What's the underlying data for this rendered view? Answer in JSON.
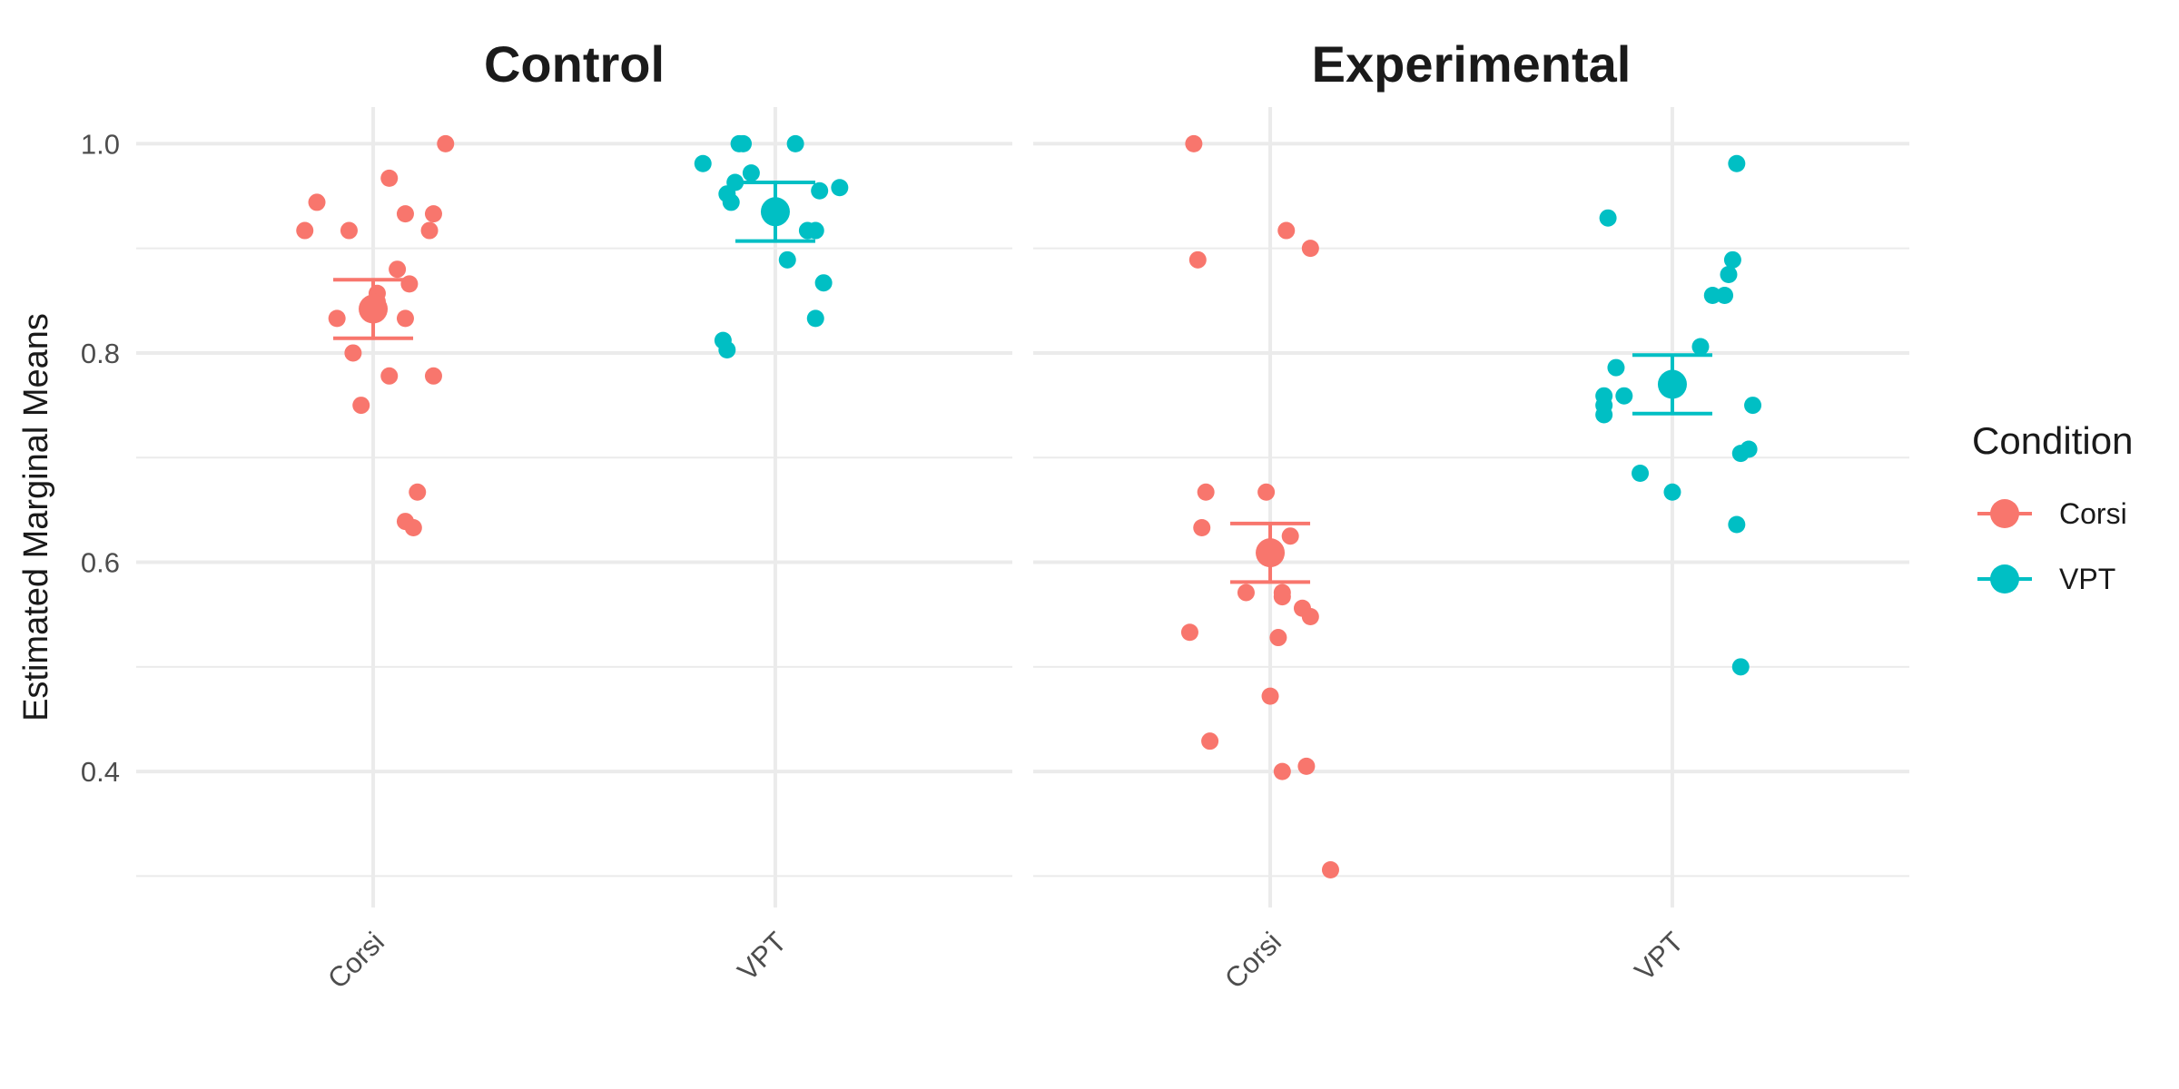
{
  "chart_data": {
    "type": "scatter",
    "ylabel": "Estimated Marginal Means",
    "ylim": [
      0.27,
      1.035
    ],
    "y_ticks": [
      0.4,
      0.6,
      0.8,
      1.0
    ],
    "y_tick_labels": [
      "0.4",
      "0.6",
      "0.8",
      "1.0"
    ],
    "categories": [
      "Corsi",
      "VPT"
    ],
    "grid": true,
    "legend": {
      "title": "Condition",
      "position": "right",
      "entries": [
        {
          "label": "Corsi",
          "color": "#F8766D"
        },
        {
          "label": "VPT",
          "color": "#00BFC4"
        }
      ]
    },
    "panels": [
      {
        "title": "Control",
        "series": [
          {
            "category": "Corsi",
            "color": "#F8766D",
            "mean": 0.842,
            "lower": 0.814,
            "upper": 0.87,
            "points": [
              [
                -0.17,
                0.917
              ],
              [
                -0.14,
                0.944
              ],
              [
                -0.06,
                0.917
              ],
              [
                0.04,
                0.967
              ],
              [
                0.08,
                0.933
              ],
              [
                0.15,
                0.933
              ],
              [
                0.14,
                0.917
              ],
              [
                0.06,
                0.88
              ],
              [
                0.09,
                0.866
              ],
              [
                0.01,
                0.857
              ],
              [
                0.01,
                0.849
              ],
              [
                -0.09,
                0.833
              ],
              [
                0.08,
                0.833
              ],
              [
                -0.05,
                0.8
              ],
              [
                0.04,
                0.778
              ],
              [
                0.15,
                0.778
              ],
              [
                -0.03,
                0.75
              ],
              [
                0.11,
                0.667
              ],
              [
                0.08,
                0.639
              ],
              [
                0.1,
                0.633
              ],
              [
                0.18,
                1.0
              ]
            ]
          },
          {
            "category": "VPT",
            "color": "#00BFC4",
            "mean": 0.935,
            "lower": 0.907,
            "upper": 0.963,
            "points": [
              [
                -0.18,
                0.981
              ],
              [
                -0.09,
                1.0
              ],
              [
                -0.08,
                1.0
              ],
              [
                0.05,
                1.0
              ],
              [
                -0.06,
                0.972
              ],
              [
                -0.1,
                0.963
              ],
              [
                0.16,
                0.958
              ],
              [
                -0.12,
                0.952
              ],
              [
                -0.11,
                0.944
              ],
              [
                0.11,
                0.955
              ],
              [
                0.08,
                0.917
              ],
              [
                0.1,
                0.917
              ],
              [
                0.03,
                0.889
              ],
              [
                0.12,
                0.867
              ],
              [
                0.1,
                0.833
              ],
              [
                -0.13,
                0.812
              ],
              [
                -0.12,
                0.803
              ]
            ]
          }
        ]
      },
      {
        "title": "Experimental",
        "series": [
          {
            "category": "Corsi",
            "color": "#F8766D",
            "mean": 0.609,
            "lower": 0.581,
            "upper": 0.637,
            "points": [
              [
                -0.19,
                1.0
              ],
              [
                -0.18,
                0.889
              ],
              [
                0.04,
                0.917
              ],
              [
                0.1,
                0.9
              ],
              [
                -0.16,
                0.667
              ],
              [
                -0.01,
                0.667
              ],
              [
                -0.17,
                0.633
              ],
              [
                0.05,
                0.625
              ],
              [
                -0.06,
                0.571
              ],
              [
                0.03,
                0.571
              ],
              [
                0.03,
                0.567
              ],
              [
                0.08,
                0.556
              ],
              [
                0.1,
                0.548
              ],
              [
                -0.2,
                0.533
              ],
              [
                0.02,
                0.528
              ],
              [
                0.0,
                0.472
              ],
              [
                -0.15,
                0.429
              ],
              [
                0.03,
                0.4
              ],
              [
                0.09,
                0.405
              ],
              [
                0.15,
                0.306
              ]
            ]
          },
          {
            "category": "VPT",
            "color": "#00BFC4",
            "mean": 0.77,
            "lower": 0.742,
            "upper": 0.798,
            "points": [
              [
                0.16,
                0.981
              ],
              [
                -0.16,
                0.929
              ],
              [
                0.15,
                0.889
              ],
              [
                0.14,
                0.875
              ],
              [
                0.13,
                0.855
              ],
              [
                0.1,
                0.855
              ],
              [
                0.07,
                0.806
              ],
              [
                -0.14,
                0.786
              ],
              [
                -0.17,
                0.759
              ],
              [
                -0.12,
                0.759
              ],
              [
                -0.17,
                0.75
              ],
              [
                -0.17,
                0.741
              ],
              [
                0.2,
                0.75
              ],
              [
                0.19,
                0.708
              ],
              [
                0.17,
                0.704
              ],
              [
                -0.08,
                0.685
              ],
              [
                0.0,
                0.667
              ],
              [
                0.16,
                0.636
              ],
              [
                0.17,
                0.5
              ]
            ]
          }
        ]
      }
    ]
  }
}
